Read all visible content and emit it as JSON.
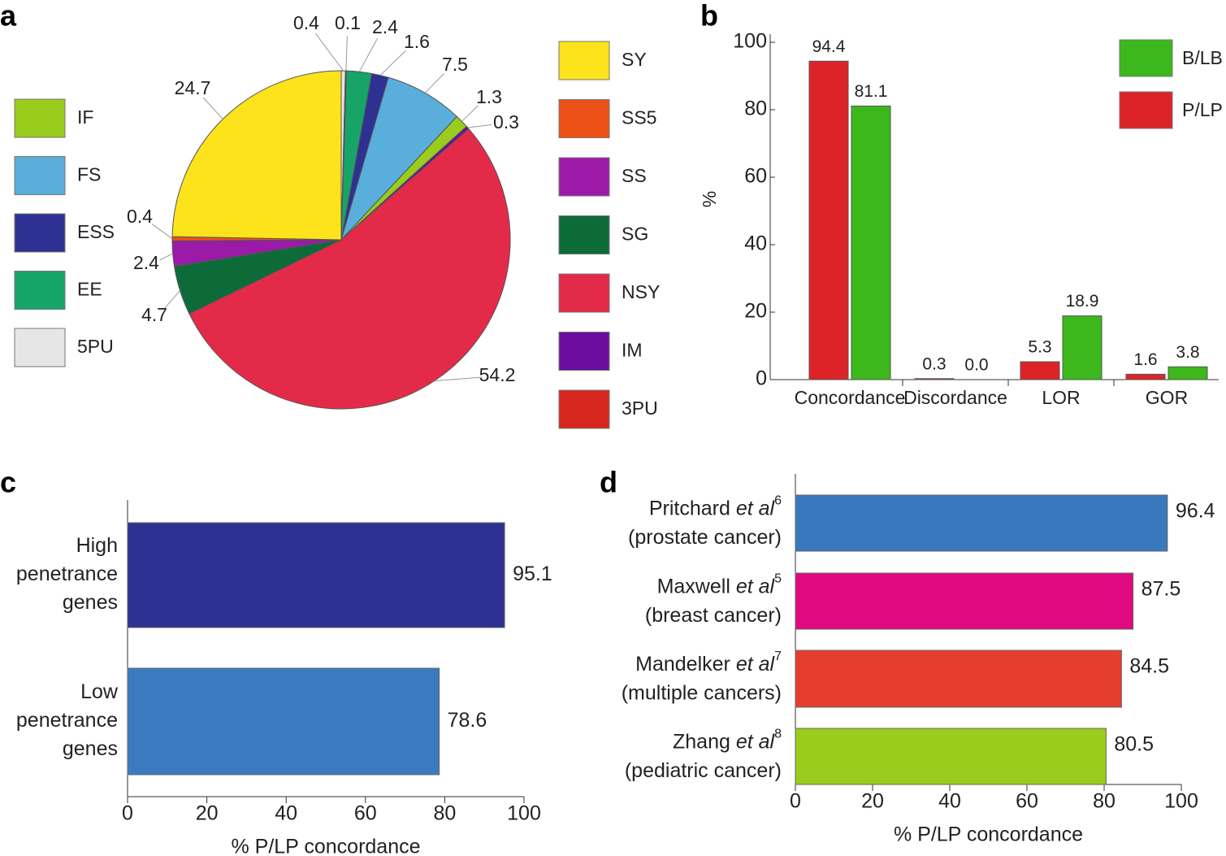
{
  "chart_data": [
    {
      "type": "pie",
      "panel_label": "a",
      "categories": [
        "5PU",
        "3PU",
        "EE",
        "ESS",
        "FS",
        "IF",
        "IM",
        "NSY",
        "SG",
        "SS",
        "SS5",
        "SY"
      ],
      "values": [
        0.4,
        0.1,
        2.4,
        1.6,
        7.5,
        1.3,
        0.3,
        54.2,
        4.7,
        2.4,
        0.4,
        24.7
      ],
      "colors": [
        "#e6e6e6",
        "#d7261e",
        "#17a567",
        "#2e3192",
        "#5aaedc",
        "#99cc1c",
        "#6a0d9e",
        "#e42a49",
        "#0d6b3a",
        "#9b1aa8",
        "#ee5117",
        "#fde31b"
      ]
    },
    {
      "type": "bar",
      "panel_label": "b",
      "ylabel": "%",
      "categories": [
        "Concordance",
        "Discordance",
        "LOR",
        "GOR"
      ],
      "series": [
        {
          "name": "P/LP",
          "color": "#dc2428",
          "values": [
            94.4,
            0.3,
            5.3,
            1.6
          ]
        },
        {
          "name": "B/LB",
          "color": "#3cb81c",
          "values": [
            81.1,
            0,
            18.9,
            3.8
          ],
          "value_labels": [
            "81.1",
            "0.0",
            "18.9",
            "3.8"
          ]
        }
      ],
      "ylim": [
        0,
        100
      ],
      "yticks": [
        0,
        20,
        40,
        60,
        80,
        100
      ],
      "legend": "upper right"
    },
    {
      "type": "barh",
      "panel_label": "c",
      "xlabel": "% P/LP concordance",
      "categories": [
        [
          "High",
          "penetrance",
          "genes"
        ],
        [
          "Low",
          "penetrance",
          "genes"
        ]
      ],
      "values": [
        95.1,
        78.6
      ],
      "colors": [
        "#2e3192",
        "#3a7bbf"
      ],
      "xlim": [
        0,
        100
      ],
      "xticks": [
        0,
        20,
        40,
        60,
        80,
        100
      ]
    },
    {
      "type": "barh",
      "panel_label": "d",
      "xlabel": "% P/LP concordance",
      "categories": [
        {
          "author": "Pritchard",
          "etal": "et al",
          "ref": "6",
          "note": "(prostate cancer)"
        },
        {
          "author": "Maxwell",
          "etal": "et al",
          "ref": "5",
          "note": "(breast cancer)"
        },
        {
          "author": "Mandelker",
          "etal": "et al",
          "ref": "7",
          "note": "(multiple cancers)"
        },
        {
          "author": "Zhang",
          "etal": "et al",
          "ref": "8",
          "note": "(pediatric cancer)"
        }
      ],
      "values": [
        96.4,
        87.5,
        84.5,
        80.5
      ],
      "colors": [
        "#3879bd",
        "#e0097f",
        "#e53e30",
        "#99cc1c"
      ],
      "xlim": [
        0,
        100
      ],
      "xticks": [
        0,
        20,
        40,
        60,
        80,
        100
      ]
    }
  ]
}
